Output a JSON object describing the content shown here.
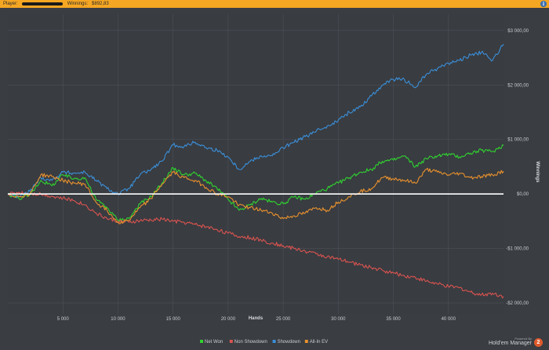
{
  "header": {
    "player_label": "Player:",
    "winnings_label": "Winnings:",
    "winnings_value": "$892,83",
    "info_icon": "info-icon",
    "background_color": "#f5a623"
  },
  "branding": {
    "powered_by": "Powered By",
    "product": "Hold'em Manager",
    "logo_text": "2"
  },
  "chart_data": {
    "type": "line",
    "xlabel": "Hands",
    "ylabel": "Winnings",
    "xlim": [
      0,
      45000
    ],
    "ylim": [
      -2200,
      3300
    ],
    "x_ticks": [
      5000,
      10000,
      15000,
      20000,
      25000,
      30000,
      35000,
      40000
    ],
    "x_tick_labels": [
      "5 000",
      "10 000",
      "15 000",
      "20 000",
      "25 000",
      "30 000",
      "35 000",
      "40 000"
    ],
    "y_ticks": [
      3000,
      2000,
      1000,
      0,
      -1000,
      -2000
    ],
    "y_tick_labels": [
      "$3 000,00",
      "$2 000,00",
      "$1 000,00",
      "$0,00",
      "-$1 000,00",
      "-$2 000,00"
    ],
    "y_axis_position": "right",
    "grid": true,
    "legend_position": "bottom-center",
    "zero_line_color": "#ffffff",
    "series": [
      {
        "name": "Net Won",
        "color": "#2fd32f",
        "points": [
          [
            0,
            0
          ],
          [
            1000,
            -80
          ],
          [
            2000,
            -20
          ],
          [
            3000,
            250
          ],
          [
            4000,
            150
          ],
          [
            5000,
            350
          ],
          [
            6000,
            280
          ],
          [
            7000,
            300
          ],
          [
            8000,
            -100
          ],
          [
            9000,
            -250
          ],
          [
            10000,
            -480
          ],
          [
            11000,
            -450
          ],
          [
            12000,
            -180
          ],
          [
            13000,
            -50
          ],
          [
            14000,
            200
          ],
          [
            15000,
            480
          ],
          [
            16000,
            350
          ],
          [
            17000,
            380
          ],
          [
            18000,
            240
          ],
          [
            19000,
            100
          ],
          [
            20000,
            -100
          ],
          [
            21000,
            -300
          ],
          [
            22000,
            -200
          ],
          [
            23000,
            -80
          ],
          [
            24000,
            -150
          ],
          [
            25000,
            -180
          ],
          [
            26000,
            -50
          ],
          [
            27000,
            -100
          ],
          [
            28000,
            20
          ],
          [
            29000,
            100
          ],
          [
            30000,
            200
          ],
          [
            31000,
            300
          ],
          [
            32000,
            400
          ],
          [
            33000,
            450
          ],
          [
            34000,
            600
          ],
          [
            35000,
            620
          ],
          [
            36000,
            700
          ],
          [
            37000,
            500
          ],
          [
            38000,
            650
          ],
          [
            39000,
            700
          ],
          [
            40000,
            730
          ],
          [
            41000,
            680
          ],
          [
            42000,
            750
          ],
          [
            43000,
            800
          ],
          [
            44000,
            780
          ],
          [
            45000,
            893
          ]
        ]
      },
      {
        "name": "Non Showdown",
        "color": "#d9534f",
        "points": [
          [
            0,
            0
          ],
          [
            1000,
            30
          ],
          [
            2000,
            10
          ],
          [
            3000,
            0
          ],
          [
            4000,
            -40
          ],
          [
            5000,
            -80
          ],
          [
            6000,
            -120
          ],
          [
            7000,
            -200
          ],
          [
            8000,
            -350
          ],
          [
            9000,
            -450
          ],
          [
            10000,
            -500
          ],
          [
            11000,
            -520
          ],
          [
            12000,
            -490
          ],
          [
            13000,
            -480
          ],
          [
            14000,
            -460
          ],
          [
            15000,
            -500
          ],
          [
            16000,
            -520
          ],
          [
            17000,
            -560
          ],
          [
            18000,
            -600
          ],
          [
            19000,
            -650
          ],
          [
            20000,
            -720
          ],
          [
            21000,
            -780
          ],
          [
            22000,
            -800
          ],
          [
            23000,
            -850
          ],
          [
            24000,
            -900
          ],
          [
            25000,
            -950
          ],
          [
            26000,
            -1000
          ],
          [
            27000,
            -1050
          ],
          [
            28000,
            -1100
          ],
          [
            29000,
            -1150
          ],
          [
            30000,
            -1200
          ],
          [
            31000,
            -1250
          ],
          [
            32000,
            -1300
          ],
          [
            33000,
            -1350
          ],
          [
            34000,
            -1400
          ],
          [
            35000,
            -1450
          ],
          [
            36000,
            -1500
          ],
          [
            37000,
            -1530
          ],
          [
            38000,
            -1600
          ],
          [
            39000,
            -1650
          ],
          [
            40000,
            -1700
          ],
          [
            41000,
            -1720
          ],
          [
            42000,
            -1800
          ],
          [
            43000,
            -1850
          ],
          [
            44000,
            -1820
          ],
          [
            45000,
            -1880
          ]
        ]
      },
      {
        "name": "Showdown",
        "color": "#3a8fd9",
        "points": [
          [
            0,
            0
          ],
          [
            1000,
            -50
          ],
          [
            2000,
            50
          ],
          [
            3000,
            300
          ],
          [
            4000,
            250
          ],
          [
            5000,
            400
          ],
          [
            6000,
            380
          ],
          [
            7000,
            400
          ],
          [
            8000,
            250
          ],
          [
            9000,
            100
          ],
          [
            10000,
            0
          ],
          [
            11000,
            100
          ],
          [
            12000,
            350
          ],
          [
            13000,
            450
          ],
          [
            14000,
            600
          ],
          [
            15000,
            900
          ],
          [
            16000,
            870
          ],
          [
            17000,
            950
          ],
          [
            18000,
            850
          ],
          [
            19000,
            800
          ],
          [
            20000,
            680
          ],
          [
            21000,
            450
          ],
          [
            22000,
            600
          ],
          [
            23000,
            700
          ],
          [
            24000,
            700
          ],
          [
            25000,
            850
          ],
          [
            26000,
            950
          ],
          [
            27000,
            1050
          ],
          [
            28000,
            1150
          ],
          [
            29000,
            1250
          ],
          [
            30000,
            1350
          ],
          [
            31000,
            1500
          ],
          [
            32000,
            1600
          ],
          [
            33000,
            1800
          ],
          [
            34000,
            2000
          ],
          [
            35000,
            2100
          ],
          [
            36000,
            2100
          ],
          [
            37000,
            1950
          ],
          [
            38000,
            2200
          ],
          [
            39000,
            2300
          ],
          [
            40000,
            2400
          ],
          [
            41000,
            2450
          ],
          [
            42000,
            2550
          ],
          [
            43000,
            2600
          ],
          [
            44000,
            2450
          ],
          [
            45000,
            2750
          ]
        ]
      },
      {
        "name": "All-In EV",
        "color": "#e8912d",
        "points": [
          [
            0,
            0
          ],
          [
            1000,
            -50
          ],
          [
            2000,
            0
          ],
          [
            3000,
            350
          ],
          [
            4000,
            320
          ],
          [
            5000,
            250
          ],
          [
            6000,
            200
          ],
          [
            7000,
            180
          ],
          [
            8000,
            -150
          ],
          [
            9000,
            -300
          ],
          [
            10000,
            -520
          ],
          [
            11000,
            -480
          ],
          [
            12000,
            -250
          ],
          [
            13000,
            -80
          ],
          [
            14000,
            180
          ],
          [
            15000,
            400
          ],
          [
            16000,
            300
          ],
          [
            17000,
            250
          ],
          [
            18000,
            120
          ],
          [
            19000,
            0
          ],
          [
            20000,
            -50
          ],
          [
            21000,
            -200
          ],
          [
            22000,
            -250
          ],
          [
            23000,
            -300
          ],
          [
            24000,
            -350
          ],
          [
            25000,
            -450
          ],
          [
            26000,
            -400
          ],
          [
            27000,
            -350
          ],
          [
            28000,
            -250
          ],
          [
            29000,
            -300
          ],
          [
            30000,
            -150
          ],
          [
            31000,
            -50
          ],
          [
            32000,
            50
          ],
          [
            33000,
            100
          ],
          [
            34000,
            300
          ],
          [
            35000,
            280
          ],
          [
            36000,
            250
          ],
          [
            37000,
            200
          ],
          [
            38000,
            450
          ],
          [
            39000,
            400
          ],
          [
            40000,
            350
          ],
          [
            41000,
            380
          ],
          [
            42000,
            300
          ],
          [
            43000,
            320
          ],
          [
            44000,
            350
          ],
          [
            45000,
            420
          ]
        ]
      }
    ]
  }
}
